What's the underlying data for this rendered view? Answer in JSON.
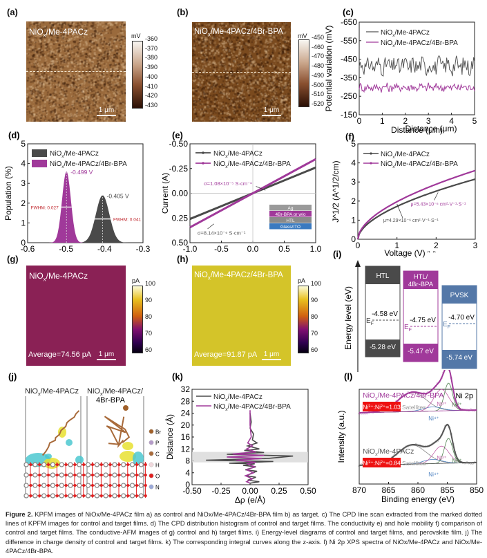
{
  "panels": {
    "a": {
      "label": "(a)",
      "title": "NiOx/Me-4PACz",
      "unit": "mV",
      "colorbar_ticks": [
        "-360",
        "-370",
        "-380",
        "-390",
        "-400",
        "-410",
        "-420",
        "-430"
      ],
      "scalebar": "1 μm",
      "base_color": "#9a6a3c"
    },
    "b": {
      "label": "(b)",
      "title": "NiOx/Me-4PACz/4Br-BPA",
      "unit": "mV",
      "colorbar_ticks": [
        "-450",
        "-460",
        "-470",
        "-480",
        "-490",
        "-500",
        "-510",
        "-520"
      ],
      "scalebar": "1 μm",
      "base_color": "#7a4a1e"
    },
    "g": {
      "label": "(g)",
      "title": "NiOx/Me-4PACz",
      "unit": "pA",
      "colorbar_ticks": [
        "100",
        "90",
        "80",
        "70",
        "60"
      ],
      "average": "Average=74.56 pA",
      "scalebar": "1 μm",
      "base_color": "#8a2155"
    },
    "h": {
      "label": "(h)",
      "title": "NiOx/Me-4PACz/4Br-BPA",
      "unit": "pA",
      "colorbar_ticks": [
        "100",
        "90",
        "80",
        "70",
        "60"
      ],
      "average": "Average=91.87 pA",
      "scalebar": "1 μm",
      "base_color": "#d4c429"
    },
    "i": {
      "label": "(i)",
      "ylabel": "Energy level (eV)",
      "ef_label": "E",
      "ef_sub": "F",
      "blocks": [
        {
          "name": "HTL",
          "color": "#4a4a4a",
          "wf": "-4.58 eV",
          "vb": "-5.28 eV"
        },
        {
          "name": "HTL/\n4Br-BPA",
          "name1": "HTL/",
          "name2": "4Br-BPA",
          "color": "#a0399a",
          "wf": "-4.75 eV",
          "vb": "-5.47 eV"
        },
        {
          "name": "PVSK",
          "color": "#5478a8",
          "wf": "-4.70 eV",
          "vb": "-5.74 eV"
        }
      ]
    },
    "j": {
      "label": "(j)",
      "titles": [
        "NiOx/Me-4PACz",
        "NiOx/Me-4PACz/",
        "4Br-BPA"
      ],
      "legend": [
        {
          "el": "Br",
          "color": "#a0602a"
        },
        {
          "el": "P",
          "color": "#b49ac8"
        },
        {
          "el": "C",
          "color": "#a86a3a"
        },
        {
          "el": "H",
          "color": "#f0d8dc"
        },
        {
          "el": "O",
          "color": "#e02020"
        },
        {
          "el": "N",
          "color": "#9aa8d8"
        }
      ]
    }
  },
  "chart_data": [
    {
      "id": "c",
      "label": "(c)",
      "type": "line",
      "xlabel": "Distance (μm)",
      "ylabel": "Potential variation (mV)",
      "xlim": [
        0,
        5
      ],
      "ylim": [
        -650,
        -150
      ],
      "xticks": [
        "0",
        "1",
        "2",
        "3",
        "4",
        "5"
      ],
      "yticks": [
        "-150",
        "-250",
        "-350",
        "-450",
        "-550",
        "-650"
      ],
      "series": [
        {
          "name": "NiOx/Me-4PACz",
          "color": "#555555",
          "mean": -385,
          "amp": 45
        },
        {
          "name": "NiOx/Me-4PACz/4Br-BPA",
          "color": "#a0399a",
          "mean": -502,
          "amp": 22
        }
      ]
    },
    {
      "id": "d",
      "label": "(d)",
      "type": "area",
      "xlabel": "ΔCPD (V)",
      "ylabel": "Population (%)",
      "xlim": [
        -0.6,
        -0.3
      ],
      "ylim": [
        0,
        5
      ],
      "xticks": [
        "-0.6",
        "-0.5",
        "-0.4",
        "-0.3"
      ],
      "yticks": [
        "0",
        "1",
        "2",
        "3",
        "4",
        "5"
      ],
      "series": [
        {
          "name": "NiOx/Me-4PACz",
          "color": "#4a4a4a",
          "peak_x": -0.405,
          "peak_y": 2.4,
          "fwhm": 0.041,
          "peak_label": "-0.405 V",
          "fwhm_label": "FWHM: 0.041"
        },
        {
          "name": "NiOx/Me-4PACz/4Br-BPA",
          "color": "#a0399a",
          "peak_x": -0.499,
          "peak_y": 3.6,
          "fwhm": 0.027,
          "peak_label": "-0.499 V",
          "fwhm_label": "FWHM: 0.027"
        }
      ]
    },
    {
      "id": "e",
      "label": "(e)",
      "type": "line",
      "xlabel": "Voltage (V)",
      "ylabel": "Current (A)",
      "xlim": [
        -1.0,
        1.0
      ],
      "ylim": [
        -0.5,
        0.5
      ],
      "xticks": [
        "-1.0",
        "-0.5",
        "0.0",
        "0.5",
        "1.0"
      ],
      "yticks": [
        "0.50",
        "0.25",
        "0.00",
        "-0.25",
        "-0.50"
      ],
      "series": [
        {
          "name": "NiOx/Me-4PACz",
          "color": "#4a4a4a",
          "slope": 0.26,
          "annotation": "σ=8.14×10⁻⁶ S·cm⁻¹"
        },
        {
          "name": "NiOx/Me-4PACz/4Br-BPA",
          "color": "#a0399a",
          "slope": 0.345,
          "annotation": "σ=1.08×10⁻⁵ S·cm⁻¹"
        }
      ],
      "inset_layers": [
        {
          "text": "Ag",
          "color": "#9a9a9a"
        },
        {
          "text": "4Br-BPA or w/o",
          "color": "#a0399a"
        },
        {
          "text": "HTL",
          "color": "#8a8a8a"
        },
        {
          "text": "Glass/ITO",
          "color": "#3a7ac0"
        }
      ]
    },
    {
      "id": "f",
      "label": "(f)",
      "type": "line",
      "xlabel": "Voltage (V)",
      "ylabel": "J^1/2 (A^1/2/cm)",
      "xlim": [
        0,
        3
      ],
      "ylim": [
        0,
        5
      ],
      "xticks": [
        "0",
        "1",
        "2",
        "3"
      ],
      "yticks": [
        "0",
        "1",
        "2",
        "3",
        "4",
        "5"
      ],
      "series": [
        {
          "name": "NiOx/Me-4PACz",
          "color": "#4a4a4a",
          "end_y": 3.15,
          "annotation": "μ=4.29×10⁻⁶ cm²·V⁻¹·S⁻¹"
        },
        {
          "name": "NiOx/Me-4PACz/4Br-BPA",
          "color": "#a0399a",
          "end_y": 3.6,
          "annotation": "μ=5.43×10⁻⁶ cm²·V⁻¹·S⁻¹"
        }
      ]
    },
    {
      "id": "k",
      "label": "(k)",
      "type": "line",
      "xlabel": "Δρ (e/Å)",
      "ylabel": "Distance (Å)",
      "xlim": [
        -0.5,
        0.5
      ],
      "ylim": [
        0,
        32
      ],
      "xticks": [
        "-0.50",
        "-0.25",
        "0.00",
        "0.25",
        "0.50"
      ],
      "yticks": [
        "0",
        "4",
        "8",
        "12",
        "16",
        "20",
        "24",
        "28",
        "32"
      ],
      "shaded_band": [
        7.5,
        11
      ],
      "series": [
        {
          "name": "NiOx/Me-4PACz",
          "color": "#4a4a4a",
          "points": [
            [
              0,
              0.5
            ],
            [
              0.08,
              1
            ],
            [
              -0.02,
              1.5
            ],
            [
              0.05,
              2.5
            ],
            [
              -0.03,
              3
            ],
            [
              0.02,
              4
            ],
            [
              0.06,
              4.5
            ],
            [
              -0.04,
              5
            ],
            [
              0.05,
              6
            ],
            [
              -0.06,
              6.5
            ],
            [
              0.04,
              7
            ],
            [
              -0.18,
              7.2
            ],
            [
              0.2,
              7.8
            ],
            [
              -0.38,
              8.2
            ],
            [
              0.15,
              8.8
            ],
            [
              0.37,
              9.6
            ],
            [
              -0.2,
              10.2
            ],
            [
              0.12,
              10.8
            ],
            [
              -0.05,
              11.5
            ],
            [
              0.08,
              12
            ],
            [
              -0.02,
              13
            ],
            [
              0.06,
              14
            ],
            [
              0.02,
              15
            ],
            [
              0.03,
              17
            ],
            [
              0.0,
              19
            ],
            [
              0.01,
              21
            ],
            [
              0,
              24
            ]
          ]
        },
        {
          "name": "NiOx/Me-4PACz/4Br-BPA",
          "color": "#a0399a",
          "points": [
            [
              0,
              0.5
            ],
            [
              -0.03,
              1
            ],
            [
              0.02,
              2
            ],
            [
              -0.04,
              3
            ],
            [
              0.03,
              4
            ],
            [
              -0.03,
              5
            ],
            [
              0.04,
              6
            ],
            [
              -0.02,
              7
            ],
            [
              0.05,
              7.5
            ],
            [
              -0.12,
              8.2
            ],
            [
              0.1,
              8.8
            ],
            [
              -0.2,
              9.3
            ],
            [
              0.12,
              9.8
            ],
            [
              -0.15,
              10.3
            ],
            [
              0.05,
              11
            ],
            [
              -0.03,
              12
            ],
            [
              0.02,
              13
            ],
            [
              -0.02,
              14
            ],
            [
              0.01,
              16
            ],
            [
              0,
              20
            ],
            [
              0,
              25
            ]
          ]
        }
      ]
    },
    {
      "id": "l",
      "label": "(l)",
      "type": "line",
      "xlabel": "Binding energy (eV)",
      "ylabel": "Intensity (a.u.)",
      "xlim": [
        870,
        850
      ],
      "xticks": [
        "870",
        "865",
        "860",
        "855",
        "850"
      ],
      "title_right": "Ni 2p",
      "groups": [
        {
          "name": "NiOx/Me-4PACz/4Br-BPA",
          "color": "#a0399a",
          "ratio": "Ni³⁺:Ni²⁺=1.03"
        },
        {
          "name": "NiOx/Me-4PACz",
          "color": "#555555",
          "ratio": "Ni³⁺:Ni²⁺=0.84"
        }
      ],
      "peak_labels": [
        "Satellites",
        "Ni⁴⁺",
        "Ni³⁺",
        "Ni²⁺"
      ],
      "component_colors": {
        "satellites": "#888888",
        "ni4": "#4a80c0",
        "ni3": "#c060a8",
        "ni2": "#508050"
      }
    }
  ],
  "caption": {
    "figure_label": "Figure 2.",
    "text": "KPFM images of NiOx/Me-4PACz film a) as control and NiOx/Me-4PACz/4Br-BPA film b) as target. c) The CPD line scan extracted from the marked dotted lines of KPFM images for control and target films. d) The CPD distribution histogram of control and target films. The conductivity e) and hole mobility f) comparison of control and target films. The conductive-AFM images of g) control and h) target films. i) Energy-level diagrams of control and target films, and perovskite film. j) The difference in charge density of control and target films. k) The corresponding integral curves along the z-axis. l) Ni 2p XPS spectra of NiOx/Me-4PACz and NiOx/Me-4PACz/4Br-BPA."
  }
}
